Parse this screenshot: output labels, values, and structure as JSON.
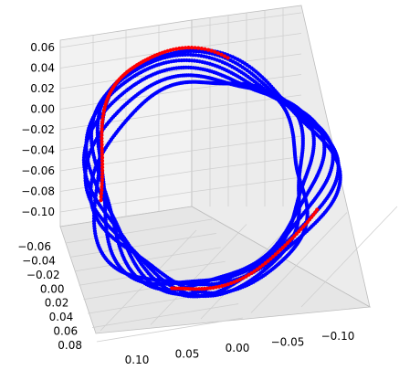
{
  "chart_data": {
    "type": "scatter",
    "projection": "3d",
    "grid": true,
    "axes": {
      "x": {
        "ticks": [
          "0.10",
          "0.05",
          "0.00",
          "−0.05",
          "−0.10"
        ],
        "range": [
          0.12,
          -0.13
        ]
      },
      "y": {
        "ticks": [
          "−0.06",
          "−0.04",
          "−0.02",
          "0.00",
          "0.02",
          "0.04",
          "0.06",
          "0.08"
        ],
        "range": [
          -0.07,
          0.09
        ]
      },
      "z": {
        "ticks": [
          "0.06",
          "0.04",
          "0.02",
          "0.00",
          "−0.02",
          "−0.04",
          "−0.06",
          "−0.08",
          "−0.10"
        ],
        "range": [
          -0.11,
          0.07
        ]
      }
    },
    "series": [
      {
        "color": "#0000ff",
        "loops": 7,
        "style": "dense points",
        "shape": "closed loop"
      },
      {
        "color": "#ff0000",
        "loops": 1,
        "style": "highlighted trajectory",
        "shape": "partial loop"
      }
    ]
  }
}
